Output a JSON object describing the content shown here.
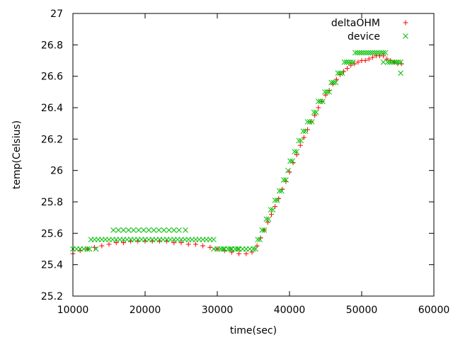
{
  "chart_data": {
    "type": "scatter",
    "title": "",
    "xlabel": "time(sec)",
    "ylabel": "temp(Celsius)",
    "xlim": [
      10000,
      60000
    ],
    "ylim": [
      25.2,
      27
    ],
    "x_ticks": [
      10000,
      20000,
      30000,
      40000,
      50000,
      60000
    ],
    "y_ticks": [
      25.2,
      25.4,
      25.6,
      25.8,
      26,
      26.2,
      26.4,
      26.6,
      26.8,
      27
    ],
    "x_tick_labels": [
      "10000",
      "20000",
      "30000",
      "40000",
      "50000",
      "60000"
    ],
    "y_tick_labels": [
      "25.2",
      "25.4",
      "25.6",
      "25.8",
      "26",
      "26.2",
      "26.4",
      "26.6",
      "26.8",
      "27"
    ],
    "grid": false,
    "legend_position": "top-right",
    "series": [
      {
        "name": "deltaOHM",
        "marker": "+",
        "color": "#ff0000",
        "x": [
          10000,
          11000,
          12000,
          13000,
          14000,
          15000,
          16000,
          17000,
          18000,
          19000,
          20000,
          21000,
          22000,
          23000,
          24000,
          25000,
          26000,
          27000,
          28000,
          29000,
          30000,
          31000,
          32000,
          33000,
          34000,
          34800,
          35500,
          36000,
          36500,
          37000,
          37500,
          38000,
          38500,
          39000,
          39500,
          40000,
          40500,
          41000,
          41500,
          42000,
          42500,
          43000,
          43500,
          44000,
          44500,
          45000,
          45500,
          46000,
          46500,
          47000,
          47500,
          48000,
          48500,
          49000,
          49500,
          50000,
          50500,
          51000,
          51500,
          52000,
          52500,
          53000,
          53500,
          54000,
          54500,
          55000,
          55500
        ],
        "y": [
          25.47,
          25.49,
          25.5,
          25.51,
          25.52,
          25.53,
          25.54,
          25.54,
          25.55,
          25.55,
          25.55,
          25.55,
          25.55,
          25.55,
          25.54,
          25.54,
          25.53,
          25.53,
          25.52,
          25.51,
          25.5,
          25.49,
          25.48,
          25.47,
          25.47,
          25.48,
          25.52,
          25.57,
          25.62,
          25.67,
          25.72,
          25.77,
          25.82,
          25.88,
          25.93,
          25.99,
          26.05,
          26.1,
          26.16,
          26.21,
          26.26,
          26.31,
          26.35,
          26.4,
          26.44,
          26.48,
          26.51,
          26.55,
          26.58,
          26.61,
          26.63,
          26.65,
          26.67,
          26.68,
          26.69,
          26.7,
          26.7,
          26.71,
          26.72,
          26.73,
          26.73,
          26.73,
          26.71,
          26.7,
          26.69,
          26.68,
          26.68
        ]
      },
      {
        "name": "device",
        "marker": "x",
        "color": "#00c000",
        "x": [
          10000,
          10500,
          11000,
          11500,
          12000,
          12500,
          13000,
          13500,
          14000,
          14500,
          15000,
          15500,
          16000,
          16500,
          17000,
          17500,
          18000,
          18500,
          19000,
          19500,
          20000,
          20500,
          21000,
          21500,
          22000,
          22500,
          23000,
          23500,
          24000,
          24500,
          25000,
          25500,
          26000,
          26500,
          27000,
          27500,
          28000,
          28500,
          29000,
          29500,
          30000,
          30500,
          31000,
          31500,
          32000,
          32500,
          33000,
          33500,
          34000,
          34500,
          35000,
          35300,
          35600,
          35900,
          36200,
          36500,
          36800,
          37100,
          37400,
          37700,
          38000,
          38300,
          38600,
          38900,
          39200,
          39500,
          39800,
          40100,
          40400,
          40700,
          41000,
          41300,
          41600,
          41900,
          42200,
          42500,
          42800,
          43100,
          43400,
          43700,
          44000,
          44300,
          44600,
          44900,
          45200,
          45500,
          45800,
          46100,
          46400,
          46700,
          47000,
          47300,
          47600,
          47900,
          48200,
          48500,
          48800,
          49100,
          49400,
          49700,
          50000,
          50300,
          50600,
          50900,
          51200,
          51500,
          51800,
          52100,
          52400,
          52700,
          53000,
          53300,
          53600,
          53900,
          54200,
          54500,
          54800,
          55100,
          55400,
          15600,
          16300,
          17000,
          17700,
          18400,
          19100,
          19800,
          20500,
          21200,
          21900,
          22600,
          23300,
          24000,
          24700,
          25600,
          12300,
          13200,
          29500,
          30800,
          31800,
          32800,
          53000,
          55400
        ],
        "y": [
          25.5,
          25.5,
          25.5,
          25.5,
          25.5,
          25.56,
          25.56,
          25.56,
          25.56,
          25.56,
          25.56,
          25.56,
          25.56,
          25.56,
          25.56,
          25.56,
          25.56,
          25.56,
          25.56,
          25.56,
          25.56,
          25.56,
          25.56,
          25.56,
          25.56,
          25.56,
          25.56,
          25.56,
          25.56,
          25.56,
          25.56,
          25.56,
          25.56,
          25.56,
          25.56,
          25.56,
          25.56,
          25.56,
          25.56,
          25.56,
          25.5,
          25.5,
          25.5,
          25.5,
          25.5,
          25.5,
          25.5,
          25.5,
          25.5,
          25.5,
          25.5,
          25.5,
          25.56,
          25.56,
          25.62,
          25.62,
          25.69,
          25.69,
          25.75,
          25.75,
          25.81,
          25.81,
          25.87,
          25.87,
          25.94,
          25.94,
          26.0,
          26.06,
          26.06,
          26.12,
          26.12,
          26.19,
          26.19,
          26.25,
          26.25,
          26.31,
          26.31,
          26.31,
          26.37,
          26.37,
          26.44,
          26.44,
          26.44,
          26.5,
          26.5,
          26.5,
          26.56,
          26.56,
          26.56,
          26.62,
          26.62,
          26.62,
          26.69,
          26.69,
          26.69,
          26.69,
          26.69,
          26.75,
          26.75,
          26.75,
          26.75,
          26.75,
          26.75,
          26.75,
          26.75,
          26.75,
          26.75,
          26.75,
          26.75,
          26.75,
          26.75,
          26.75,
          26.69,
          26.69,
          26.69,
          26.69,
          26.69,
          26.69,
          26.69,
          25.62,
          25.62,
          25.62,
          25.62,
          25.62,
          25.62,
          25.62,
          25.62,
          25.62,
          25.62,
          25.62,
          25.62,
          25.62,
          25.62,
          25.62,
          25.5,
          25.5,
          25.5,
          25.5,
          25.5,
          25.5,
          26.69,
          26.62
        ]
      }
    ]
  }
}
